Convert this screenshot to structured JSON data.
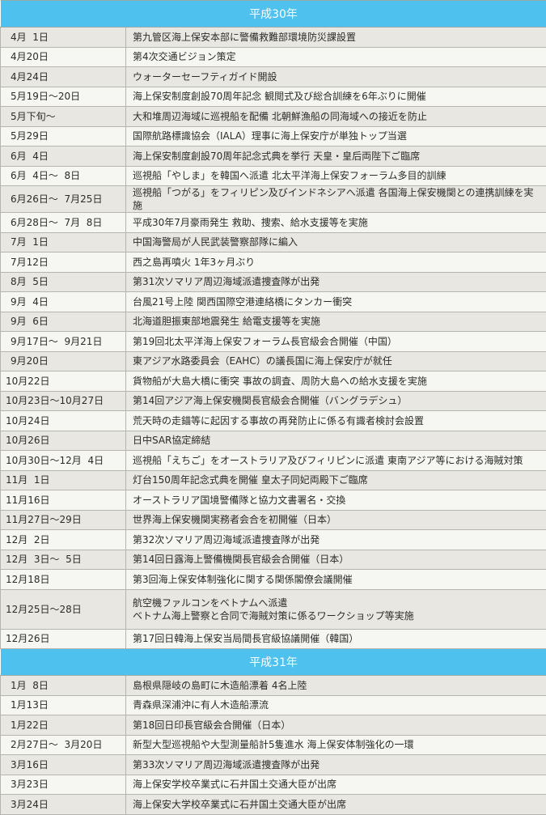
{
  "sections": [
    {
      "title": "平成30年",
      "rows": [
        {
          "date": "4月  1日",
          "event": "第九管区海上保安本部に警備救難部環境防災課設置"
        },
        {
          "date": "4月20日",
          "event": "第4次交通ビジョン策定"
        },
        {
          "date": "4月24日",
          "event": "ウォーターセーフティガイド開設"
        },
        {
          "date": "5月19日～20日",
          "event": "海上保安制度創設70周年記念 観閲式及び総合訓練を6年ぶりに開催"
        },
        {
          "date": "5月下旬～",
          "event": "大和堆周辺海域に巡視船を配備 北朝鮮漁船の同海域への接近を防止"
        },
        {
          "date": "5月29日",
          "event": "国際航路標識協会（IALA）理事に海上保安庁が単独トップ当選"
        },
        {
          "date": "6月  4日",
          "event": "海上保安制度創設70周年記念式典を挙行 天皇・皇后両陛下ご臨席"
        },
        {
          "date": "6月  4日～  8日",
          "event": "巡視船「やしま」を韓国へ派遣 北太平洋海上保安フォーラム多目的訓練"
        },
        {
          "date": "6月26日～  7月25日",
          "event": "巡視船「つがる」をフィリピン及びインドネシアへ派遣 各国海上保安機関との連携訓練を実施"
        },
        {
          "date": "6月28日～  7月  8日",
          "event": "平成30年7月豪雨発生 救助、捜索、給水支援等を実施"
        },
        {
          "date": "7月  1日",
          "event": "中国海警局が人民武装警察部隊に編入"
        },
        {
          "date": "7月12日",
          "event": "西之島再噴火 1年3ヶ月ぶり"
        },
        {
          "date": "8月  5日",
          "event": "第31次ソマリア周辺海域派遣捜査隊が出発"
        },
        {
          "date": "9月  4日",
          "event": "台風21号上陸 関西国際空港連絡橋にタンカー衝突"
        },
        {
          "date": "9月  6日",
          "event": "北海道胆振東部地震発生 給電支援等を実施"
        },
        {
          "date": "9月17日～  9月21日",
          "event": "第19回北太平洋海上保安フォーラム長官級会合開催（中国）"
        },
        {
          "date": "9月20日",
          "event": "東アジア水路委員会（EAHC）の議長国に海上保安庁が就任"
        },
        {
          "date": "10月22日",
          "event": "貨物船が大島大橋に衝突 事故の調査、周防大島への給水支援を実施"
        },
        {
          "date": "10月23日～10月27日",
          "event": "第14回アジア海上保安機関長官級会合開催（バングラデシュ）"
        },
        {
          "date": "10月24日",
          "event": "荒天時の走錨等に起因する事故の再発防止に係る有識者検討会設置"
        },
        {
          "date": "10月26日",
          "event": "日中SAR協定締結"
        },
        {
          "date": "10月30日～12月  4日",
          "event": "巡視船「えちご」をオーストラリア及びフィリピンに派遣 東南アジア等における海賊対策"
        },
        {
          "date": "11月  1日",
          "event": "灯台150周年記念式典を開催 皇太子同妃両殿下ご臨席"
        },
        {
          "date": "11月16日",
          "event": "オーストラリア国境警備隊と協力文書署名・交換"
        },
        {
          "date": "11月27日～29日",
          "event": "世界海上保安機関実務者会合を初開催（日本）"
        },
        {
          "date": "12月  2日",
          "event": "第32次ソマリア周辺海域派遣捜査隊が出発"
        },
        {
          "date": "12月  3日～  5日",
          "event": "第14回日露海上警備機関長官級会合開催（日本）"
        },
        {
          "date": "12月18日",
          "event": "第3回海上保安体制強化に関する関係閣僚会議開催"
        },
        {
          "date": "12月25日～28日",
          "event": "航空機ファルコンをベトナムへ派遣\nベトナム海上警察と合同で海賊対策に係るワークショップ等実施"
        },
        {
          "date": "12月26日",
          "event": "第17回日韓海上保安当局間長官級協議開催（韓国）"
        }
      ]
    },
    {
      "title": "平成31年",
      "rows": [
        {
          "date": "1月  8日",
          "event": "島根県隠岐の島町に木造船漂着 4名上陸"
        },
        {
          "date": "1月13日",
          "event": "青森県深浦沖に有人木造船漂流"
        },
        {
          "date": "1月22日",
          "event": "第18回日印長官級会合開催（日本）"
        },
        {
          "date": "2月27日～  3月20日",
          "event": "新型大型巡視船や大型測量船計5隻進水 海上保安体制強化の一環"
        },
        {
          "date": "3月16日",
          "event": "第33次ソマリア周辺海域派遣捜査隊が出発"
        },
        {
          "date": "3月23日",
          "event": "海上保安学校卒業式に石井国土交通大臣が出席"
        },
        {
          "date": "3月24日",
          "event": "海上保安大学校卒業式に石井国土交通大臣が出席"
        }
      ]
    }
  ],
  "colors": {
    "header": "#4fc1ef",
    "row_odd": "#e9e7e1",
    "row_even": "#f6f6f2"
  }
}
